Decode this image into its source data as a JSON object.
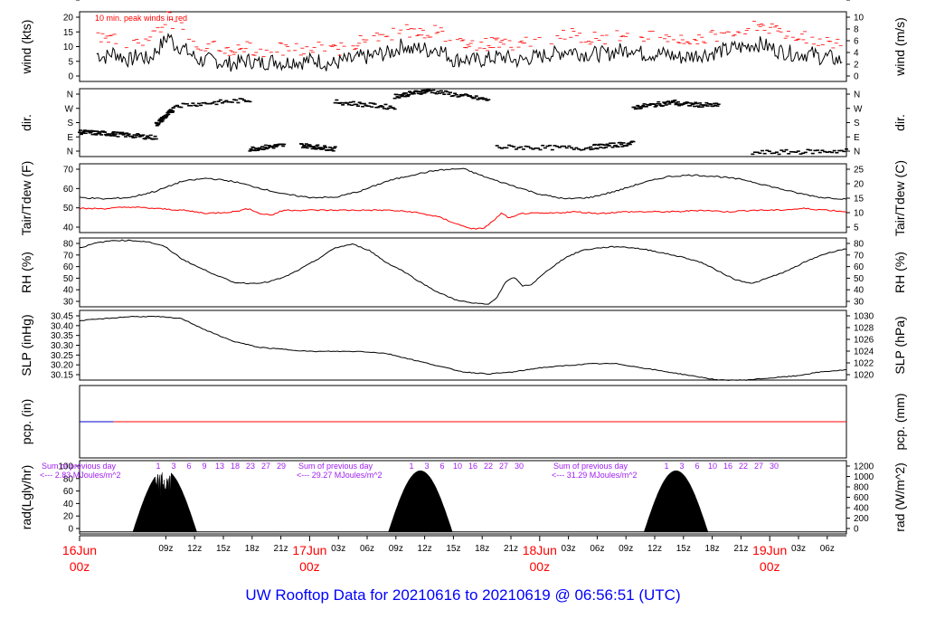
{
  "page_title": "UW Rooftop Data for 20210616  to  20210619 @ 06:56:51  (UTC)",
  "colors": {
    "black": "#000000",
    "red": "#ff0000",
    "blue": "#0000cc",
    "purple": "#a020f0",
    "title_blue": "#0000ff",
    "frame": "#000000"
  },
  "chart_data": [
    {
      "id": "wind",
      "type": "line",
      "ylabel_left": "wind (kts)",
      "ylabel_right": "wind (m/s)",
      "ylim": [
        -0.5,
        21
      ],
      "yticks_left": [
        "0",
        "5",
        "10",
        "15",
        "20"
      ],
      "yticks_right": [
        "0",
        "2",
        "4",
        "6",
        "8",
        "10"
      ],
      "annotation": "10 min. peak winds in red",
      "series": [
        {
          "key": "speed",
          "color": "#000000",
          "x": [
            4,
            6,
            8,
            10,
            12,
            14,
            16,
            18,
            20,
            21,
            22,
            24,
            26,
            28,
            30,
            32,
            34,
            36,
            38,
            40,
            42,
            44,
            46,
            48,
            50,
            52,
            54,
            56,
            58,
            60,
            62,
            64,
            66,
            68,
            70,
            72,
            74,
            76,
            78,
            80,
            82,
            84,
            86,
            88,
            90,
            92,
            94,
            96,
            98,
            100,
            102,
            104,
            106,
            108,
            110,
            112,
            114,
            116,
            118,
            120,
            122,
            124,
            126,
            128,
            130,
            132,
            134,
            136,
            138,
            140,
            142,
            144,
            146,
            148,
            150,
            152,
            154,
            156,
            158,
            160,
            162,
            164,
            166,
            168,
            170,
            172,
            174,
            176,
            178,
            179
          ],
          "y": [
            8,
            7,
            8.5,
            7,
            6,
            8,
            6,
            9,
            12,
            14,
            11,
            10,
            8,
            6,
            6,
            6,
            5,
            5,
            5.5,
            6,
            5,
            5.5,
            6,
            5,
            6,
            5.5,
            6,
            6,
            5,
            5,
            6,
            6,
            7,
            7,
            8,
            8,
            9,
            11,
            9,
            10,
            9,
            10,
            8,
            6,
            6.5,
            6,
            6,
            6.5,
            7,
            7,
            6,
            6,
            7,
            7,
            8,
            8,
            9,
            9,
            8,
            8,
            8,
            8,
            9,
            9,
            10,
            8,
            8,
            8,
            8,
            7,
            7,
            7.5,
            8,
            8,
            9,
            9,
            10,
            10,
            11,
            11,
            10,
            9,
            8.5,
            8,
            8,
            8,
            7,
            7,
            6,
            6
          ]
        },
        {
          "key": "peak",
          "color": "#ff0000",
          "x": [
            4,
            6,
            8,
            10,
            12,
            14,
            16,
            18,
            20,
            21,
            22,
            24,
            26,
            28,
            30,
            32,
            34,
            36,
            38,
            40,
            42,
            44,
            46,
            48,
            50,
            52,
            54,
            56,
            58,
            60,
            62,
            64,
            66,
            68,
            70,
            72,
            74,
            76,
            78,
            80,
            82,
            84,
            86,
            88,
            90,
            92,
            94,
            96,
            98,
            100,
            102,
            104,
            106,
            108,
            110,
            112,
            114,
            116,
            118,
            120,
            122,
            124,
            126,
            128,
            130,
            132,
            134,
            136,
            138,
            140,
            142,
            144,
            146,
            148,
            150,
            152,
            154,
            156,
            158,
            160,
            162,
            164,
            166,
            168,
            170,
            172,
            174,
            176,
            178,
            179
          ],
          "y": [
            13,
            12,
            13,
            12,
            11,
            13,
            11,
            15,
            18,
            20,
            17,
            16,
            13,
            11,
            10,
            10,
            9,
            9,
            10,
            10,
            9,
            9,
            10,
            9,
            10,
            9,
            10,
            10,
            9,
            9,
            10,
            11,
            12,
            12,
            13,
            13,
            15,
            17,
            14,
            15,
            14,
            16,
            13,
            11,
            11,
            11,
            11,
            11,
            12,
            12,
            11,
            11,
            12,
            12,
            13,
            13,
            14,
            14,
            13,
            13,
            13,
            13,
            14,
            14,
            15,
            13,
            13,
            13,
            13,
            12,
            12,
            12,
            13,
            13,
            14,
            14,
            16,
            16,
            17,
            17,
            16,
            15,
            14,
            13,
            13,
            13,
            12,
            12,
            11,
            11
          ]
        }
      ]
    },
    {
      "id": "dir",
      "type": "scatter",
      "ylabel_left": "dir.",
      "ylabel_right": "dir.",
      "ylim": [
        0,
        360
      ],
      "yticks_left": [
        "N",
        "E",
        "S",
        "W",
        "N"
      ],
      "yticks_right": [
        "N",
        "E",
        "S",
        "W",
        "N"
      ],
      "segments": [
        {
          "x0": 0,
          "x1": 8,
          "y0": 130,
          "y1": 120
        },
        {
          "x0": 8,
          "x1": 18,
          "y0": 120,
          "y1": 100
        },
        {
          "x0": 18,
          "x1": 22,
          "y0": 170,
          "y1": 250
        },
        {
          "x0": 22,
          "x1": 40,
          "y0": 270,
          "y1": 300
        },
        {
          "x0": 40,
          "x1": 48,
          "y0": 40,
          "y1": 60
        },
        {
          "x0": 52,
          "x1": 60,
          "y0": 60,
          "y1": 40
        },
        {
          "x0": 60,
          "x1": 74,
          "y0": 290,
          "y1": 260
        },
        {
          "x0": 74,
          "x1": 82,
          "y0": 320,
          "y1": 350
        },
        {
          "x0": 82,
          "x1": 96,
          "y0": 350,
          "y1": 300
        },
        {
          "x0": 98,
          "x1": 120,
          "y0": 50,
          "y1": 45
        },
        {
          "x0": 120,
          "x1": 130,
          "y0": 50,
          "y1": 70
        },
        {
          "x0": 130,
          "x1": 140,
          "y0": 260,
          "y1": 290
        },
        {
          "x0": 140,
          "x1": 150,
          "y0": 280,
          "y1": 270
        },
        {
          "x0": 158,
          "x1": 180,
          "y0": 20,
          "y1": 30
        }
      ]
    },
    {
      "id": "temp",
      "type": "line",
      "ylabel_left": "Tair/Tdew (F)",
      "ylabel_right": "Tair/Tdew (C)",
      "ylim": [
        36,
        79
      ],
      "yticks_left": [
        "40",
        "50",
        "60",
        "70"
      ],
      "yticks_right": [
        "5",
        "10",
        "15",
        "20",
        "25"
      ],
      "series": [
        {
          "key": "tair",
          "color": "#000000",
          "x": [
            0,
            6,
            12,
            18,
            24,
            30,
            36,
            42,
            48,
            54,
            60,
            66,
            72,
            78,
            84,
            90,
            96,
            102,
            108,
            114,
            120,
            126,
            132,
            138,
            144,
            150,
            156,
            162,
            168,
            174,
            180
          ],
          "y": [
            58,
            57,
            58,
            62,
            68,
            70,
            68,
            64,
            60,
            58,
            58,
            62,
            68,
            72,
            75,
            76,
            70,
            65,
            60,
            57,
            58,
            62,
            67,
            71,
            72,
            71,
            69,
            65,
            61,
            58,
            57
          ]
        },
        {
          "key": "tdew",
          "color": "#ff0000",
          "x": [
            0,
            6,
            12,
            18,
            24,
            30,
            36,
            40,
            42,
            45,
            48,
            54,
            60,
            66,
            72,
            78,
            84,
            88,
            90,
            93,
            95,
            97,
            99,
            101,
            104,
            110,
            116,
            122,
            128,
            134,
            140,
            146,
            152,
            158,
            164,
            170,
            176,
            180
          ],
          "y": [
            51,
            51,
            52,
            51,
            50,
            48,
            49,
            51,
            48,
            47,
            50,
            50,
            50,
            50,
            50,
            49,
            46,
            42,
            40,
            38,
            39,
            43,
            48,
            45,
            48,
            48,
            49,
            48,
            49,
            49,
            49,
            50,
            49,
            50,
            50,
            51,
            50,
            49
          ]
        }
      ]
    },
    {
      "id": "rh",
      "type": "line",
      "ylabel_left": "RH (%)",
      "ylabel_right": "RH (%)",
      "ylim": [
        26,
        82
      ],
      "yticks_left": [
        "30",
        "40",
        "50",
        "60",
        "70",
        "80"
      ],
      "yticks_right": [
        "30",
        "40",
        "50",
        "60",
        "70",
        "80"
      ],
      "series": [
        {
          "key": "rh",
          "color": "#000000",
          "x": [
            0,
            4,
            8,
            12,
            16,
            20,
            24,
            28,
            32,
            36,
            40,
            44,
            48,
            52,
            56,
            60,
            64,
            68,
            72,
            76,
            80,
            84,
            88,
            92,
            96,
            98,
            100,
            102,
            104,
            106,
            110,
            114,
            118,
            122,
            126,
            130,
            134,
            138,
            142,
            146,
            150,
            154,
            158,
            162,
            166,
            170,
            174,
            178,
            180
          ],
          "y": [
            74,
            78,
            80,
            80,
            79,
            75,
            65,
            58,
            52,
            46,
            45,
            46,
            50,
            57,
            65,
            74,
            77,
            72,
            62,
            55,
            46,
            38,
            32,
            29,
            28,
            34,
            46,
            50,
            43,
            44,
            56,
            66,
            72,
            74,
            75,
            74,
            72,
            69,
            66,
            62,
            55,
            48,
            45,
            50,
            55,
            62,
            68,
            72,
            73
          ]
        }
      ]
    },
    {
      "id": "slp",
      "type": "line",
      "ylabel_left": "SLP (inHg)",
      "ylabel_right": "SLP (hPa)",
      "ylim": [
        30.12,
        30.46
      ],
      "yticks_left": [
        "30.15",
        "30.20",
        "30.25",
        "30.30",
        "30.35",
        "30.40",
        "30.45"
      ],
      "yticks_right": [
        "1020",
        "1022",
        "1024",
        "1026",
        "1028",
        "1030"
      ],
      "series": [
        {
          "key": "slp",
          "color": "#000000",
          "x": [
            0,
            6,
            12,
            18,
            24,
            30,
            36,
            42,
            48,
            54,
            60,
            66,
            72,
            78,
            84,
            90,
            96,
            102,
            108,
            114,
            120,
            126,
            132,
            138,
            144,
            150,
            156,
            162,
            168,
            174,
            180
          ],
          "y": [
            30.41,
            30.42,
            30.43,
            30.43,
            30.42,
            30.36,
            30.31,
            30.28,
            30.27,
            30.26,
            30.26,
            30.26,
            30.25,
            30.22,
            30.19,
            30.16,
            30.15,
            30.16,
            30.18,
            30.19,
            30.2,
            30.2,
            30.18,
            30.16,
            30.14,
            30.12,
            30.12,
            30.13,
            30.14,
            30.16,
            30.17
          ]
        }
      ]
    },
    {
      "id": "pcp",
      "type": "line",
      "ylabel_left": "pcp. (in)",
      "ylabel_right": "pcp. (mm)",
      "ylim": [
        -1,
        1
      ],
      "yticks_left": [
        "0"
      ],
      "yticks_right": [
        "0"
      ],
      "series": [
        {
          "key": "pcp_blue",
          "color": "#0000cc",
          "x": [
            0,
            8
          ],
          "y": [
            0,
            0
          ]
        },
        {
          "key": "pcp_red",
          "color": "#ff0000",
          "x": [
            8,
            180
          ],
          "y": [
            0,
            0
          ]
        }
      ]
    },
    {
      "id": "rad",
      "type": "area",
      "ylabel_left": "rad(Lgly/hr)",
      "ylabel_right": "rad (W/m^2)",
      "ylim": [
        -3,
        106
      ],
      "yticks_left": [
        "0",
        "20",
        "40",
        "60",
        "80",
        "100"
      ],
      "yticks_right": [
        "0",
        "200",
        "400",
        "600",
        "800",
        "1000",
        "1200"
      ],
      "days": [
        {
          "start": 12.5,
          "end": 27.5,
          "peak": 92
        },
        {
          "start": 72.5,
          "end": 87.5,
          "peak": 91
        },
        {
          "start": 132.5,
          "end": 147.5,
          "peak": 91
        }
      ],
      "annotations": [
        {
          "line1": "Sum of previous day",
          "line2": "<--- 2.83 MJoules/m^2",
          "days_row": [
            "1",
            "3",
            "6",
            "9",
            "13",
            "18",
            "23",
            "27",
            "29"
          ]
        },
        {
          "line1": "Sum of previous day",
          "line2": "<--- 29.27 MJoules/m^2",
          "days_row": [
            "1",
            "3",
            "6",
            "10",
            "16",
            "22",
            "27",
            "30"
          ]
        },
        {
          "line1": "Sum of previous day",
          "line2": "<--- 31.29 MJoules/m^2",
          "days_row": [
            "1",
            "3",
            "6",
            "10",
            "16",
            "22",
            "27",
            "30"
          ]
        }
      ]
    }
  ],
  "x_axis": {
    "hour_labels": [
      "09z",
      "12z",
      "15z",
      "18z",
      "21z",
      "03z",
      "06z",
      "09z",
      "12z",
      "15z",
      "18z",
      "21z",
      "03z",
      "06z",
      "09z",
      "12z",
      "15z",
      "18z",
      "21z",
      "03z",
      "06z"
    ],
    "hour_positions": [
      9,
      12,
      15,
      18,
      21,
      27,
      30,
      33,
      36,
      39,
      42,
      45,
      51,
      54,
      57,
      60,
      63,
      66,
      69,
      75,
      78
    ],
    "day_labels": [
      {
        "date": "16Jun",
        "time": "00z",
        "hour": 0
      },
      {
        "date": "17Jun",
        "time": "00z",
        "hour": 24
      },
      {
        "date": "18Jun",
        "time": "00z",
        "hour": 48
      },
      {
        "date": "19Jun",
        "time": "00z",
        "hour": 72
      }
    ]
  }
}
